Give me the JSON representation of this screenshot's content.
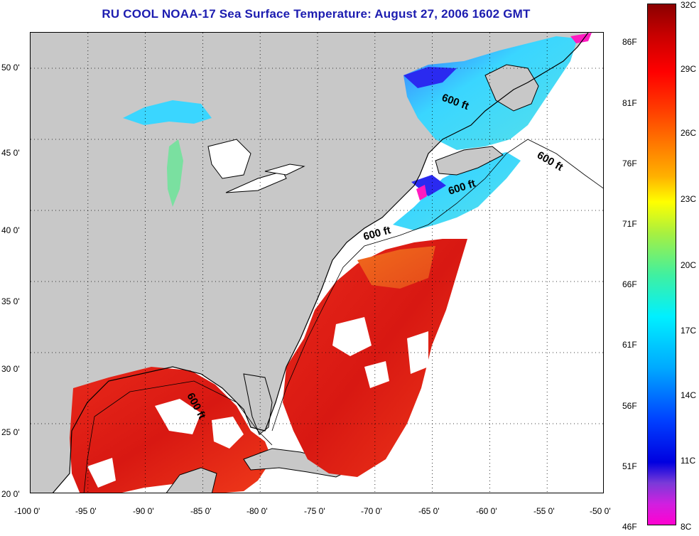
{
  "title": "RU COOL  NOAA-17  Sea Surface Temperature:  August 27, 2006 1602 GMT",
  "colors": {
    "title": "#1c1cb0",
    "land": "#c8c8c8",
    "ocean_nodata": "#ffffff",
    "coast": "#000000",
    "grid": "#000000"
  },
  "map": {
    "longitude_range": [
      -100,
      -50
    ],
    "latitude_range": [
      20,
      52.5
    ],
    "x_tick_labels": [
      "-100 0'",
      "-95 0'",
      "-90 0'",
      "-85 0'",
      "-80 0'",
      "-75 0'",
      "-70 0'",
      "-65 0'",
      "-60 0'",
      "-55 0'",
      "-50 0'"
    ],
    "y_tick_labels": [
      "50 0'",
      "45 0'",
      "40 0'",
      "35 0'",
      "30 0'",
      "25 0'",
      "20 0'"
    ],
    "grid": "dotted",
    "contour_labels": [
      "600 ft",
      "600 ft",
      "600 ft",
      "600 ft",
      "600 ft"
    ]
  },
  "colorbar": {
    "fahrenheit_labels": [
      "86F",
      "81F",
      "76F",
      "71F",
      "66F",
      "61F",
      "56F",
      "51F",
      "46F"
    ],
    "celsius_labels": [
      "32C",
      "29C",
      "26C",
      "23C",
      "20C",
      "17C",
      "14C",
      "11C",
      "8C"
    ]
  }
}
